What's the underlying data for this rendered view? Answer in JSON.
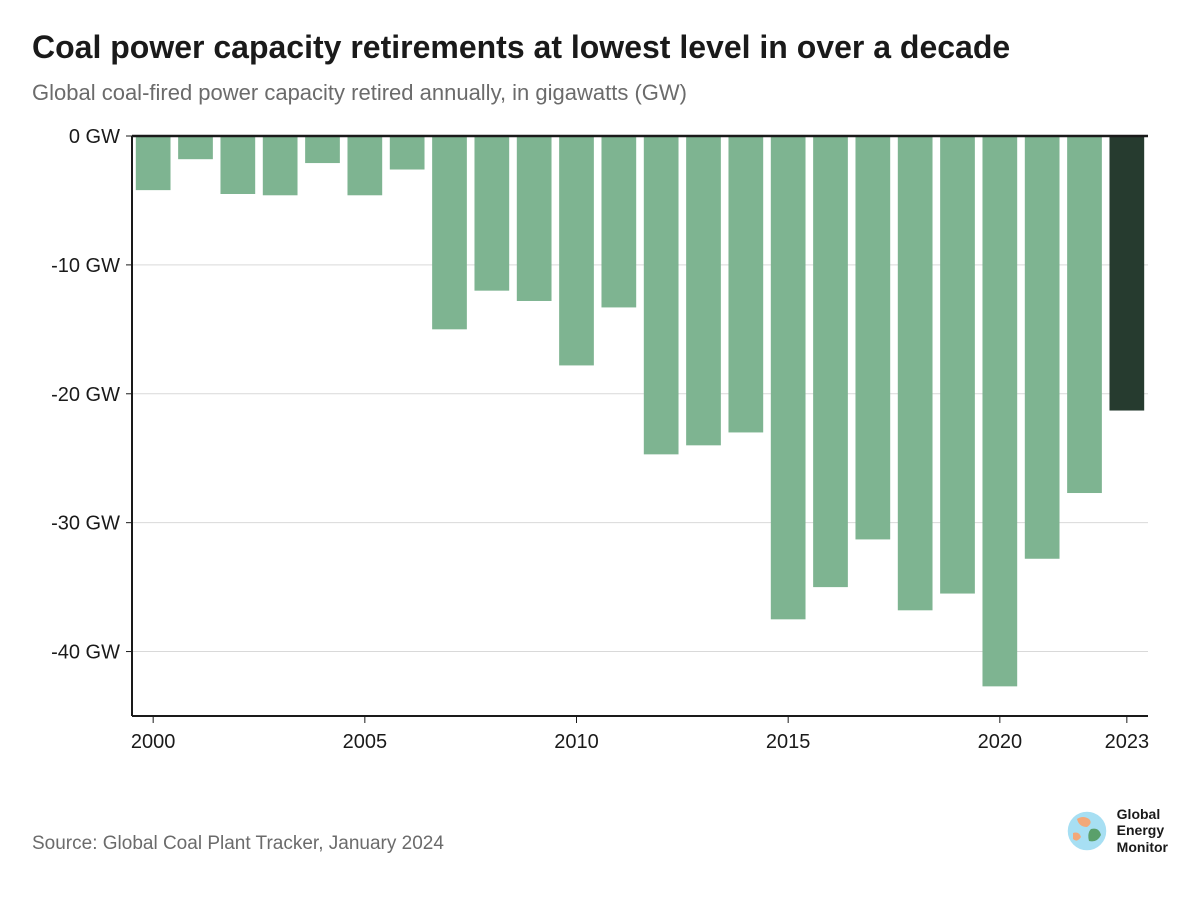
{
  "title": "Coal power capacity retirements at lowest level in over a decade",
  "subtitle": "Global coal-fired power capacity retired annually, in gigawatts (GW)",
  "chart": {
    "type": "bar",
    "years": [
      2000,
      2001,
      2002,
      2003,
      2004,
      2005,
      2006,
      2007,
      2008,
      2009,
      2010,
      2011,
      2012,
      2013,
      2014,
      2015,
      2016,
      2017,
      2018,
      2019,
      2020,
      2021,
      2022,
      2023
    ],
    "values": [
      -4.2,
      -1.8,
      -4.5,
      -4.6,
      -2.1,
      -4.6,
      -2.6,
      -15.0,
      -12.0,
      -12.8,
      -17.8,
      -13.3,
      -24.7,
      -24.0,
      -23.0,
      -37.5,
      -35.0,
      -31.3,
      -36.8,
      -35.5,
      -42.7,
      -32.8,
      -27.7,
      -21.3
    ],
    "highlight_index": 23,
    "bar_color": "#7eb491",
    "highlight_color": "#263b2f",
    "background_color": "#ffffff",
    "axis_color": "#1a1a1a",
    "tick_color": "#1a1a1a",
    "gridline_color": "#d9d9d9",
    "y_axis": {
      "min": -45,
      "max": 0,
      "ticks": [
        0,
        -10,
        -20,
        -30,
        -40
      ],
      "tick_labels": [
        "0 GW",
        "-10 GW",
        "-20 GW",
        "-30 GW",
        "-40 GW"
      ],
      "label_fontsize": 20,
      "label_color": "#1a1a1a"
    },
    "x_axis": {
      "tick_years": [
        2000,
        2005,
        2010,
        2015,
        2020,
        2023
      ],
      "label_fontsize": 20,
      "label_color": "#1a1a1a"
    },
    "bar_gap_ratio": 0.18,
    "axis_line_width": 2,
    "tick_line_width": 1
  },
  "source": "Source: Global Coal Plant Tracker, January 2024",
  "logo": {
    "name": "Global Energy Monitor",
    "line1": "Global",
    "line2": "Energy",
    "line3": "Monitor",
    "globe_bg": "#a7dff3",
    "land_color": "#f3a879",
    "accent_color": "#5aa06b"
  }
}
